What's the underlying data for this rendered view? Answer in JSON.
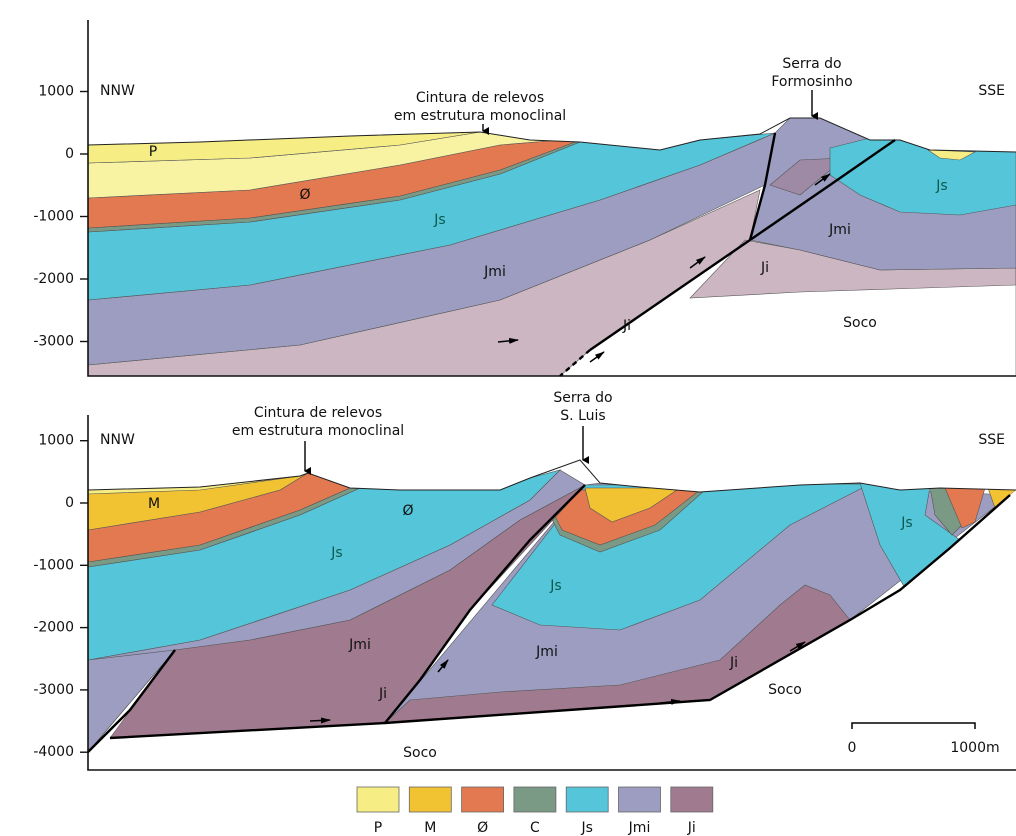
{
  "sections": [
    {
      "yticks": [
        "1000",
        "0",
        "-1000",
        "-2000",
        "-3000"
      ],
      "direction_left": "NNW",
      "direction_right": "SSE",
      "annotations": [
        {
          "lines": [
            "Cintura de relevos",
            "em estrutura monoclinal"
          ]
        },
        {
          "lines": [
            "Serra do",
            "Formosinho"
          ]
        }
      ],
      "unit_labels": [
        "P",
        "Ø",
        "Js",
        "Jmi",
        "Ji",
        "Js",
        "Jmi",
        "Ji",
        "Soco"
      ]
    },
    {
      "yticks": [
        "1000",
        "0",
        "-1000",
        "-2000",
        "-3000",
        "-4000"
      ],
      "direction_left": "NNW",
      "direction_right": "SSE",
      "annotations": [
        {
          "lines": [
            "Cintura de relevos",
            "em estrutura monoclinal"
          ]
        },
        {
          "lines": [
            "Serra do",
            "S. Luis"
          ]
        }
      ],
      "unit_labels": [
        "M",
        "Ø",
        "Js",
        "Jmi",
        "Ji",
        "Js",
        "Jmi",
        "Ji",
        "Soco",
        "Js",
        "Soco"
      ]
    }
  ],
  "scale_bar": [
    "0",
    "1000m"
  ],
  "legend": [
    {
      "label": "P",
      "color": "#f6ee84"
    },
    {
      "label": "M",
      "color": "#f1c232"
    },
    {
      "label": "Ø",
      "color": "#e27950"
    },
    {
      "label": "C",
      "color": "#7b9a86"
    },
    {
      "label": "Js",
      "color": "#55c5d9"
    },
    {
      "label": "Jmi",
      "color": "#9c9dc0"
    },
    {
      "label": "Ji",
      "color": "#a07a8e"
    }
  ]
}
